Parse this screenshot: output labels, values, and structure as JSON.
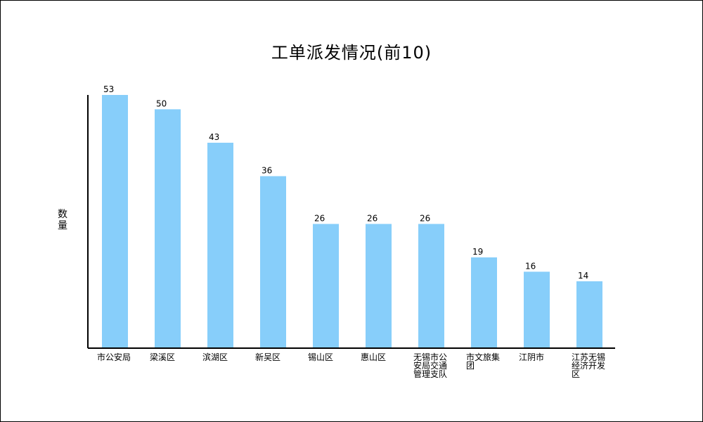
{
  "chart_data": {
    "type": "bar",
    "title": "工单派发情况(前10)",
    "ylabel": "数\n量",
    "xlabel": "",
    "categories": [
      "市公安局",
      "梁溪区",
      "滨湖区",
      "新吴区",
      "锡山区",
      "惠山区",
      "无锡市公安局交通管理支队",
      "市文旅集团",
      "江阴市",
      "江苏无锡经济开发区"
    ],
    "category_lines": [
      [
        "市公安局"
      ],
      [
        "梁溪区"
      ],
      [
        "滨湖区"
      ],
      [
        "新吴区"
      ],
      [
        "锡山区"
      ],
      [
        "惠山区"
      ],
      [
        "无锡市公",
        "安局交通",
        "管理支队"
      ],
      [
        "市文旅集",
        "团"
      ],
      [
        "江阴市"
      ],
      [
        "江苏无锡",
        "经济开发",
        "区"
      ]
    ],
    "values": [
      53,
      50,
      43,
      36,
      26,
      26,
      26,
      19,
      16,
      14
    ],
    "ylim": [
      0,
      53
    ],
    "grid": false,
    "bar_color": "#87CEFA",
    "axis_color": "#000000"
  }
}
